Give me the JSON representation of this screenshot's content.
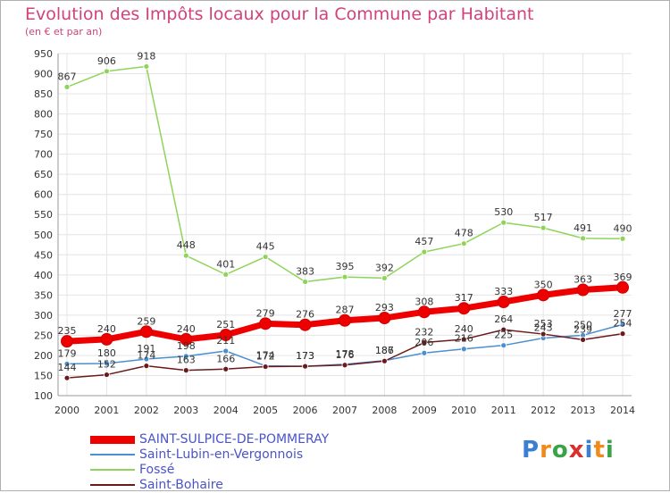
{
  "title": "Evolution des Impôts locaux pour la Commune par Habitant",
  "subtitle": "(en € et par an)",
  "logo": {
    "text": "Proxiti",
    "letters": [
      "P",
      "r",
      "o",
      "x",
      "i",
      "t",
      "i"
    ],
    "colors": [
      "#3a7fd0",
      "#f08a1c",
      "#3aa34a",
      "#d8302c",
      "#3a7fd0",
      "#f08a1c",
      "#3aa34a"
    ]
  },
  "chart_data": {
    "type": "line",
    "title": "Evolution des Impôts locaux pour la Commune par Habitant",
    "subtitle": "(en € et par an)",
    "xlabel": "",
    "ylabel": "",
    "ylim": [
      100,
      950
    ],
    "yticks": [
      100,
      150,
      200,
      250,
      300,
      350,
      400,
      450,
      500,
      550,
      600,
      650,
      700,
      750,
      800,
      850,
      900,
      950
    ],
    "x": [
      "2000",
      "2001",
      "2002",
      "2003",
      "2004",
      "2005",
      "2006",
      "2007",
      "2008",
      "2009",
      "2010",
      "2011",
      "2012",
      "2013",
      "2014"
    ],
    "grid": true,
    "legend_position": "bottom-left",
    "series": [
      {
        "name": "SAINT-SULPICE-DE-POMMERAY",
        "color": "#ee0000",
        "values": [
          235,
          240,
          259,
          240,
          251,
          279,
          276,
          287,
          293,
          308,
          317,
          333,
          350,
          363,
          369
        ]
      },
      {
        "name": "Saint-Lubin-en-Vergonnois",
        "color": "#4a8fd0",
        "values": [
          179,
          180,
          191,
          198,
          211,
          174,
          173,
          178,
          187,
          206,
          216,
          225,
          243,
          250,
          277
        ]
      },
      {
        "name": "Fossé",
        "color": "#8fd45a",
        "values": [
          867,
          906,
          918,
          448,
          401,
          445,
          383,
          395,
          392,
          457,
          478,
          530,
          517,
          491,
          490
        ]
      },
      {
        "name": "Saint-Bohaire",
        "color": "#6a1a1a",
        "values": [
          144,
          152,
          174,
          163,
          166,
          172,
          173,
          176,
          186,
          232,
          240,
          264,
          253,
          239,
          254
        ]
      }
    ]
  }
}
